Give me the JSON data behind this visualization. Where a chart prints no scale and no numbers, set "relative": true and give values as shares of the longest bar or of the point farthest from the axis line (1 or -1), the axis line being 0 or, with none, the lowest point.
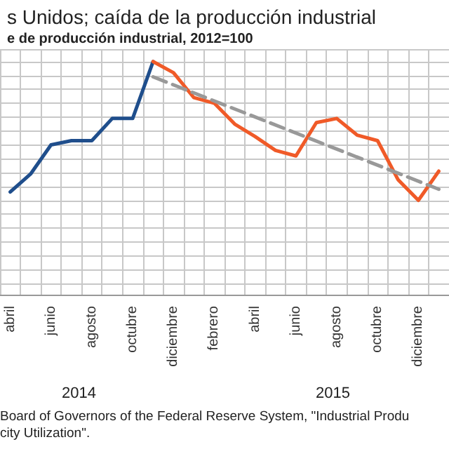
{
  "chart_data": {
    "type": "line",
    "title": "s Unidos; caída de la producción industrial",
    "subtitle": "e de producción industrial, 2012=100",
    "categories": [
      "abril",
      null,
      "junio",
      null,
      "agosto",
      null,
      "octubre",
      null,
      "diciembre",
      null,
      "febrero",
      null,
      "abril",
      null,
      "junio",
      null,
      "agosto",
      null,
      "octubre",
      null,
      "diciembre",
      null
    ],
    "relative": true,
    "grid": true,
    "marker": "none",
    "series": [
      {
        "color": "#1f4e8c",
        "values": [
          0.06,
          0.19,
          0.4,
          0.43,
          0.43,
          0.59,
          0.59,
          1,
          null,
          null,
          null,
          null,
          null,
          null,
          null,
          null,
          null,
          null,
          null,
          null,
          null,
          null
        ]
      },
      {
        "color": "#f05a28",
        "values": [
          null,
          null,
          null,
          null,
          null,
          null,
          null,
          1,
          0.92,
          0.74,
          0.7,
          0.55,
          0.46,
          0.36,
          0.32,
          0.56,
          0.59,
          0.47,
          0.43,
          0.15,
          0,
          0.21
        ]
      },
      {
        "color": "#999999",
        "line_style": "dashed",
        "values": [
          null,
          null,
          null,
          null,
          null,
          null,
          null,
          0.89,
          null,
          null,
          null,
          null,
          null,
          null,
          null,
          null,
          null,
          null,
          null,
          null,
          null,
          0.08
        ]
      }
    ],
    "annotations": [
      "2014",
      "2015",
      "Board of Governors of the Federal Reserve System, \"Industrial Produ",
      "city Utilization\"."
    ]
  }
}
